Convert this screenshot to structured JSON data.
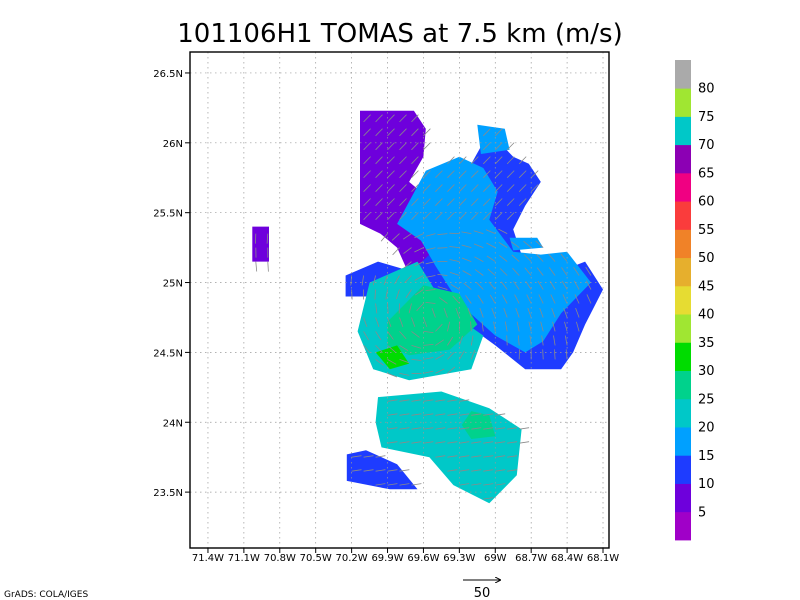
{
  "chart_data": {
    "type": "heatmap",
    "title": "101106H1 TOMAS at 7.5 km (m/s)",
    "xlabel": "",
    "ylabel": "",
    "xlim": [
      -71.55,
      -68.05
    ],
    "ylim": [
      23.1,
      26.65
    ],
    "x_ticks": [
      -71.4,
      -71.1,
      -70.8,
      -70.5,
      -70.2,
      -69.9,
      -69.6,
      -69.3,
      -69.0,
      -68.7,
      -68.4,
      -68.1
    ],
    "x_tick_labels": [
      "71.4W",
      "71.1W",
      "70.8W",
      "70.5W",
      "70.2W",
      "69.9W",
      "69.6W",
      "69.3W",
      "69W",
      "68.7W",
      "68.4W",
      "68.1W"
    ],
    "y_ticks": [
      23.5,
      24.0,
      24.5,
      25.0,
      25.5,
      26.0,
      26.5
    ],
    "y_tick_labels": [
      "23.5N",
      "24N",
      "24.5N",
      "25N",
      "25.5N",
      "26N",
      "26.5N"
    ],
    "grid": true,
    "colorbar": {
      "levels": [
        5,
        10,
        15,
        20,
        25,
        30,
        35,
        40,
        45,
        50,
        55,
        60,
        65,
        70,
        75,
        80
      ],
      "labels": [
        "5",
        "10",
        "15",
        "20",
        "25",
        "30",
        "35",
        "40",
        "45",
        "50",
        "55",
        "60",
        "65",
        "70",
        "75",
        "80"
      ],
      "colors": [
        "#a000c8",
        "#6e00dc",
        "#1e3cff",
        "#00a0ff",
        "#00c8c8",
        "#00d28c",
        "#00dc00",
        "#a0e632",
        "#e6dc32",
        "#e6af2d",
        "#f08228",
        "#fa3c3c",
        "#f00082",
        "#8c00b4",
        "#00c8c8",
        "#a0e632",
        "#aaaaaa"
      ]
    },
    "speed_regions": [
      {
        "speed_class": "5-10",
        "points": [
          [
            -70.13,
            26.23
          ],
          [
            -69.68,
            26.23
          ],
          [
            -69.58,
            26.1
          ],
          [
            -69.6,
            25.9
          ],
          [
            -69.72,
            25.72
          ],
          [
            -69.48,
            25.55
          ],
          [
            -69.38,
            25.3
          ],
          [
            -69.45,
            25.12
          ],
          [
            -69.7,
            25.02
          ],
          [
            -69.82,
            25.25
          ],
          [
            -69.96,
            25.35
          ],
          [
            -70.13,
            25.42
          ],
          [
            -70.13,
            25.8
          ]
        ]
      },
      {
        "speed_class": "5-10",
        "points": [
          [
            -71.03,
            25.4
          ],
          [
            -70.89,
            25.4
          ],
          [
            -70.89,
            25.15
          ],
          [
            -71.03,
            25.15
          ]
        ]
      },
      {
        "speed_class": "10-15",
        "points": [
          [
            -70.25,
            25.05
          ],
          [
            -69.98,
            25.15
          ],
          [
            -69.7,
            25.08
          ],
          [
            -69.4,
            25.32
          ],
          [
            -69.25,
            25.55
          ],
          [
            -69.2,
            25.85
          ],
          [
            -69.05,
            26.08
          ],
          [
            -68.85,
            25.9
          ],
          [
            -68.72,
            25.85
          ],
          [
            -68.62,
            25.72
          ],
          [
            -68.75,
            25.55
          ],
          [
            -68.85,
            25.38
          ],
          [
            -68.75,
            25.12
          ],
          [
            -68.55,
            25.05
          ],
          [
            -68.25,
            25.15
          ],
          [
            -68.1,
            24.95
          ],
          [
            -68.25,
            24.7
          ],
          [
            -68.35,
            24.5
          ],
          [
            -68.45,
            24.38
          ],
          [
            -68.75,
            24.38
          ],
          [
            -69.0,
            24.55
          ],
          [
            -69.4,
            24.8
          ],
          [
            -69.9,
            24.9
          ],
          [
            -70.25,
            24.9
          ]
        ]
      },
      {
        "speed_class": "10-15",
        "points": [
          [
            -70.24,
            23.77
          ],
          [
            -70.08,
            23.8
          ],
          [
            -69.82,
            23.7
          ],
          [
            -69.65,
            23.52
          ],
          [
            -69.88,
            23.52
          ],
          [
            -70.24,
            23.58
          ]
        ]
      },
      {
        "speed_class": "15-20",
        "points": [
          [
            -69.82,
            25.42
          ],
          [
            -69.58,
            25.8
          ],
          [
            -69.3,
            25.9
          ],
          [
            -69.1,
            25.82
          ],
          [
            -68.98,
            25.65
          ],
          [
            -69.05,
            25.45
          ],
          [
            -68.85,
            25.22
          ],
          [
            -68.62,
            25.2
          ],
          [
            -68.4,
            25.22
          ],
          [
            -68.2,
            25.0
          ],
          [
            -68.45,
            24.78
          ],
          [
            -68.6,
            24.58
          ],
          [
            -68.75,
            24.5
          ],
          [
            -69.0,
            24.62
          ],
          [
            -69.3,
            24.85
          ],
          [
            -69.5,
            25.12
          ],
          [
            -69.62,
            25.3
          ]
        ]
      },
      {
        "speed_class": "15-20",
        "points": [
          [
            -69.15,
            26.13
          ],
          [
            -68.92,
            26.1
          ],
          [
            -68.88,
            25.95
          ],
          [
            -69.12,
            25.92
          ]
        ]
      },
      {
        "speed_class": "15-20",
        "points": [
          [
            -68.88,
            25.32
          ],
          [
            -68.65,
            25.32
          ],
          [
            -68.6,
            25.25
          ],
          [
            -68.85,
            25.23
          ]
        ]
      },
      {
        "speed_class": "20-25",
        "points": [
          [
            -70.05,
            25.0
          ],
          [
            -69.65,
            25.15
          ],
          [
            -69.4,
            24.8
          ],
          [
            -69.1,
            24.62
          ],
          [
            -69.2,
            24.38
          ],
          [
            -69.72,
            24.3
          ],
          [
            -70.02,
            24.38
          ],
          [
            -70.15,
            24.65
          ]
        ]
      },
      {
        "speed_class": "20-25",
        "points": [
          [
            -69.98,
            24.18
          ],
          [
            -69.45,
            24.22
          ],
          [
            -69.05,
            24.1
          ],
          [
            -68.78,
            23.95
          ],
          [
            -68.82,
            23.62
          ],
          [
            -69.05,
            23.42
          ],
          [
            -69.35,
            23.55
          ],
          [
            -69.55,
            23.75
          ],
          [
            -69.95,
            23.82
          ],
          [
            -70.0,
            24.0
          ]
        ]
      },
      {
        "speed_class": "25-30",
        "points": [
          [
            -69.9,
            24.72
          ],
          [
            -69.6,
            24.98
          ],
          [
            -69.3,
            24.92
          ],
          [
            -69.15,
            24.7
          ],
          [
            -69.38,
            24.52
          ],
          [
            -69.72,
            24.48
          ],
          [
            -69.9,
            24.55
          ]
        ]
      },
      {
        "speed_class": "25-30",
        "points": [
          [
            -69.2,
            24.08
          ],
          [
            -69.05,
            24.05
          ],
          [
            -69.0,
            23.9
          ],
          [
            -69.2,
            23.88
          ],
          [
            -69.28,
            23.98
          ]
        ]
      },
      {
        "speed_class": "30-35",
        "points": [
          [
            -70.0,
            24.5
          ],
          [
            -69.82,
            24.55
          ],
          [
            -69.72,
            24.42
          ],
          [
            -69.88,
            24.38
          ]
        ]
      }
    ],
    "reference_vector": {
      "label": "50",
      "unit": "m/s"
    },
    "credit": "GrADS: COLA/IGES"
  }
}
